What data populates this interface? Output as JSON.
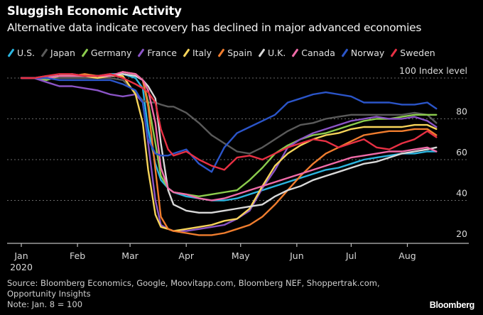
{
  "header": {
    "title": "Sluggish Economic Activity",
    "subtitle": "Alternative data indicate recovery has declined in major advanced economies"
  },
  "footer": {
    "source_line1": "Source: Bloomberg Economics, Google, Moovitapp.com, Bloomberg NEF, Shoppertrak.com,",
    "source_line2": "Opportunity Insights",
    "note": "Note: Jan. 8 = 100",
    "brand": "Bloomberg"
  },
  "chart_data": {
    "type": "line",
    "title": "Sluggish Economic Activity",
    "subtitle": "Alternative data indicate recovery has declined in major advanced economies",
    "ylabel": "100 Index level",
    "xlabel": "",
    "ylim": [
      20,
      100
    ],
    "yticks": [
      20,
      40,
      60,
      80,
      100
    ],
    "ytick_labels": [
      "20",
      "40",
      "60",
      "80",
      "100 Index level"
    ],
    "xlim_days": [
      0,
      232
    ],
    "xticks": [
      {
        "label": "Jan",
        "day": 0
      },
      {
        "label": "Feb",
        "day": 31
      },
      {
        "label": "Mar",
        "day": 60
      },
      {
        "label": "Apr",
        "day": 91
      },
      {
        "label": "May",
        "day": 121
      },
      {
        "label": "Jun",
        "day": 152
      },
      {
        "label": "Jul",
        "day": 182
      },
      {
        "label": "Aug",
        "day": 213
      }
    ],
    "xtick_sublabel": "2020",
    "grid": "horizontal-dotted",
    "legend_position": "top",
    "x_days": [
      7,
      14,
      21,
      28,
      35,
      42,
      49,
      56,
      63,
      67,
      70,
      74,
      77,
      81,
      84,
      91,
      98,
      105,
      112,
      119,
      126,
      133,
      140,
      147,
      154,
      161,
      168,
      175,
      182,
      189,
      196,
      203,
      210,
      217,
      224,
      229
    ],
    "series": [
      {
        "name": "U.S.",
        "color": "#2bb5e0",
        "values": [
          100,
          101,
          101,
          102,
          101,
          101,
          102,
          102,
          100,
          95,
          75,
          58,
          50,
          46,
          44,
          42,
          41,
          40,
          40,
          41,
          43,
          45,
          47,
          49,
          51,
          53,
          55,
          56,
          58,
          60,
          61,
          62,
          63,
          63,
          64,
          64
        ]
      },
      {
        "name": "Japan",
        "color": "#5a5a5a",
        "values": [
          100,
          100,
          100,
          100,
          100,
          100,
          100,
          99,
          93,
          89,
          88,
          88,
          87,
          86,
          86,
          83,
          78,
          72,
          68,
          64,
          63,
          66,
          70,
          74,
          77,
          78,
          80,
          81,
          82,
          82,
          82,
          82,
          82,
          83,
          82,
          78
        ]
      },
      {
        "name": "Germany",
        "color": "#8ccc4d",
        "values": [
          100,
          99,
          101,
          101,
          101,
          101,
          101,
          103,
          102,
          99,
          88,
          68,
          52,
          46,
          44,
          43,
          42,
          43,
          44,
          45,
          50,
          56,
          63,
          67,
          70,
          72,
          73,
          75,
          77,
          79,
          80,
          80,
          81,
          82,
          82,
          82
        ]
      },
      {
        "name": "France",
        "color": "#8b54c6",
        "values": [
          100,
          98,
          96,
          96,
          95,
          94,
          92,
          91,
          92,
          88,
          68,
          40,
          28,
          26,
          25,
          25,
          26,
          27,
          28,
          31,
          35,
          46,
          55,
          66,
          70,
          73,
          75,
          77,
          79,
          80,
          81,
          80,
          80,
          81,
          79,
          76
        ]
      },
      {
        "name": "Italy",
        "color": "#f7d45a",
        "values": [
          100,
          100,
          101,
          101,
          101,
          100,
          101,
          101,
          92,
          78,
          55,
          33,
          27,
          26,
          25,
          26,
          27,
          28,
          30,
          31,
          36,
          47,
          57,
          63,
          67,
          70,
          72,
          73,
          75,
          76,
          76,
          76,
          76,
          77,
          77,
          75
        ]
      },
      {
        "name": "Spain",
        "color": "#f07d2e",
        "values": [
          100,
          100,
          101,
          101,
          102,
          101,
          101,
          103,
          102,
          99,
          86,
          55,
          32,
          26,
          25,
          24,
          23,
          23,
          24,
          26,
          28,
          32,
          38,
          45,
          52,
          58,
          63,
          66,
          69,
          72,
          73,
          74,
          74,
          75,
          75,
          72
        ]
      },
      {
        "name": "U.K.",
        "color": "#d9d9d9",
        "values": [
          100,
          100,
          101,
          101,
          101,
          101,
          101,
          102,
          101,
          99,
          96,
          90,
          68,
          45,
          38,
          35,
          34,
          34,
          35,
          36,
          37,
          38,
          42,
          45,
          47,
          50,
          52,
          54,
          56,
          58,
          59,
          61,
          63,
          64,
          65,
          66
        ]
      },
      {
        "name": "Canada",
        "color": "#f06ba8",
        "values": [
          100,
          100,
          101,
          101,
          101,
          101,
          101,
          103,
          102,
          99,
          94,
          78,
          56,
          46,
          44,
          43,
          41,
          40,
          41,
          43,
          45,
          47,
          49,
          51,
          53,
          55,
          57,
          59,
          61,
          62,
          63,
          64,
          64,
          65,
          66,
          64
        ]
      },
      {
        "name": "Norway",
        "color": "#2b55c9",
        "values": [
          100,
          100,
          99,
          99,
          99,
          99,
          99,
          97,
          94,
          88,
          70,
          63,
          62,
          62,
          63,
          65,
          58,
          54,
          66,
          73,
          76,
          79,
          82,
          88,
          90,
          92,
          93,
          92,
          91,
          88,
          88,
          88,
          87,
          87,
          88,
          85
        ]
      },
      {
        "name": "Sweden",
        "color": "#e83044",
        "values": [
          100,
          101,
          102,
          102,
          101,
          101,
          102,
          100,
          97,
          95,
          93,
          88,
          75,
          65,
          62,
          64,
          60,
          57,
          55,
          61,
          62,
          60,
          63,
          66,
          68,
          70,
          69,
          66,
          68,
          70,
          66,
          65,
          68,
          70,
          74,
          71
        ]
      }
    ]
  }
}
